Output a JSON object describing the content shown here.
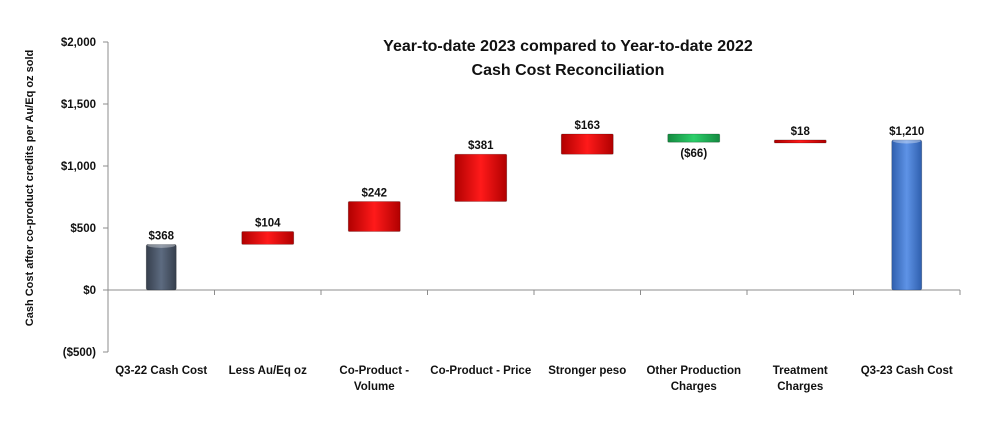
{
  "chart_data": {
    "type": "bar",
    "subtype": "waterfall",
    "title": [
      "Year-to-date 2023 compared to Year-to-date 2022",
      "Cash Cost Reconciliation"
    ],
    "ylabel": "Cash Cost after co-product credits per Au/Eq oz sold",
    "xlabel": "",
    "ylim": [
      -500,
      2000
    ],
    "yticks": [
      {
        "value": 2000,
        "label": "$2,000",
        "color": "#111111"
      },
      {
        "value": 1500,
        "label": "$1,500",
        "color": "#111111"
      },
      {
        "value": 1000,
        "label": "$1,000",
        "color": "#111111"
      },
      {
        "value": 500,
        "label": "$500",
        "color": "#111111"
      },
      {
        "value": 0,
        "label": "$0",
        "color": "#111111"
      },
      {
        "value": -500,
        "label": "($500)",
        "color": "#cc0000"
      }
    ],
    "bars": [
      {
        "category": [
          "Q3-22 Cash Cost"
        ],
        "start": 0,
        "end": 368,
        "label": "$368",
        "kind": "total",
        "color": "#4a5568",
        "label_color": "#111111"
      },
      {
        "category": [
          "Less Au/Eq oz"
        ],
        "start": 368,
        "end": 472,
        "label": "$104",
        "kind": "increase",
        "color": "#e00000",
        "label_color": "#111111"
      },
      {
        "category": [
          "Co-Product -",
          "Volume"
        ],
        "start": 472,
        "end": 714,
        "label": "$242",
        "kind": "increase",
        "color": "#e00000",
        "label_color": "#111111"
      },
      {
        "category": [
          "Co-Product - Price"
        ],
        "start": 714,
        "end": 1095,
        "label": "$381",
        "kind": "increase",
        "color": "#e00000",
        "label_color": "#111111"
      },
      {
        "category": [
          "Stronger peso"
        ],
        "start": 1095,
        "end": 1258,
        "label": "$163",
        "kind": "increase",
        "color": "#e00000",
        "label_color": "#111111"
      },
      {
        "category": [
          "Other Production",
          "Charges"
        ],
        "start": 1258,
        "end": 1192,
        "label": "($66)",
        "kind": "decrease",
        "color": "#1faa55",
        "label_color": "#cc0000"
      },
      {
        "category": [
          "Treatment",
          "Charges"
        ],
        "start": 1192,
        "end": 1210,
        "label": "$18",
        "kind": "increase",
        "color": "#e00000",
        "label_color": "#111111"
      },
      {
        "category": [
          "Q3-23 Cash Cost"
        ],
        "start": 0,
        "end": 1210,
        "label": "$1,210",
        "kind": "total",
        "color": "#4a7fd4",
        "label_color": "#111111"
      }
    ]
  }
}
